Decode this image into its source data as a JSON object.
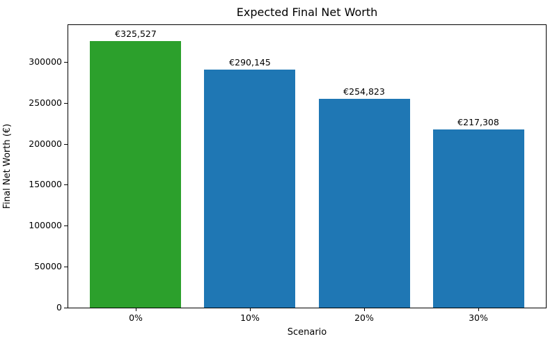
{
  "chart_data": {
    "type": "bar",
    "title": "Expected Final Net Worth",
    "xlabel": "Scenario",
    "ylabel": "Final Net Worth (€)",
    "categories": [
      "0%",
      "10%",
      "20%",
      "30%"
    ],
    "values": [
      325527,
      290145,
      254823,
      217308
    ],
    "bar_labels": [
      "€325,527",
      "€290,145",
      "€254,823",
      "€217,308"
    ],
    "bar_colors": [
      "#2ca02c",
      "#1f77b4",
      "#1f77b4",
      "#1f77b4"
    ],
    "yticks": [
      0,
      50000,
      100000,
      150000,
      200000,
      250000,
      300000
    ],
    "ytick_labels": [
      "0",
      "50000",
      "100000",
      "150000",
      "200000",
      "250000",
      "300000"
    ],
    "ylim": [
      0,
      344800
    ],
    "grid": false,
    "legend": null,
    "accent_colors": {
      "highlight_bar": "#2ca02c",
      "default_bar": "#1f77b4",
      "text": "#000000"
    }
  }
}
